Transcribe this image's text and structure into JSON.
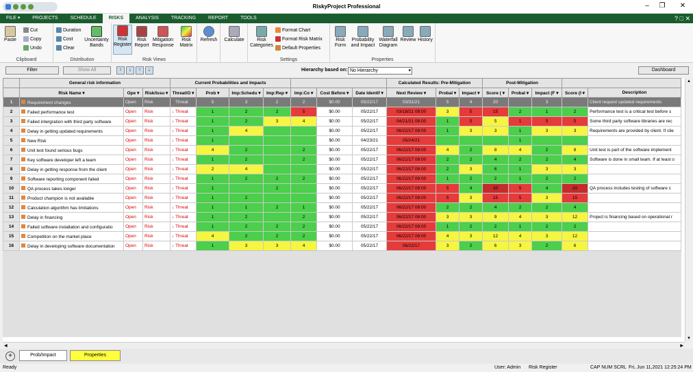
{
  "window": {
    "title": "RiskyProject Professional"
  },
  "menu": {
    "file": "FILE",
    "tabs": [
      "PROJECTS",
      "SCHEDULE",
      "RISKS",
      "ANALYSIS",
      "TRACKING",
      "REPORT",
      "TOOLS"
    ],
    "active": "RISKS"
  },
  "ribbon": {
    "clipboard": {
      "label": "Clipboard",
      "paste": "Paste",
      "cut": "Cut",
      "copy": "Copy",
      "undo": "Undo"
    },
    "distribution": {
      "label": "Distribution",
      "duration": "Duration",
      "cost": "Cost",
      "clear": "Clear",
      "uncertainty1": "Uncertainty",
      "uncertainty2": "Bands"
    },
    "riskviews": {
      "label": "Risk Views",
      "register1": "Risk",
      "register2": "Register",
      "report1": "Risk",
      "report2": "Report",
      "mitigation1": "Mitigation",
      "mitigation2": "Response",
      "matrix1": "Risk",
      "matrix2": "Matrix"
    },
    "refresh": "Refresh",
    "calculate": "Calculate",
    "settings": {
      "label": "Settings",
      "categories1": "Risk",
      "categories2": "Categories",
      "format_chart": "Format Chart",
      "format_matrix": "Format Risk Matrix",
      "default_props": "Default Properties"
    },
    "properties": {
      "label": "Properties",
      "form1": "Risk",
      "form2": "Form",
      "prob1": "Probability",
      "prob2": "and Impact",
      "waterfall1": "Waterfall",
      "waterfall2": "Diagram",
      "review": "Review",
      "history": "History"
    }
  },
  "toolbar": {
    "filter": "Filter",
    "show_all": "Show All",
    "hierarchy_label": "Hierarchy based on:",
    "hierarchy_value": "No Hierarchy",
    "dashboard": "Dashboard"
  },
  "groups": {
    "general": "General risk information",
    "probs": "Current Probabilities and Impacts",
    "pre": "Calculated Results: Pre-Mitigation",
    "post": "Post-Mitigation"
  },
  "columns": [
    "Risk Name",
    "Ope",
    "Risk/Issu",
    "Threat/O",
    "Prob",
    "Imp:Schedu",
    "Imp:Rep",
    "Imp:Co",
    "Cost Before",
    "Date Identif",
    "Next Review",
    "Probal",
    "Impact",
    "Score (",
    "Probal",
    "Impact (F",
    "Score (I",
    "Description"
  ],
  "rows": [
    {
      "n": "1",
      "name": "Requirement changes",
      "status": "Open",
      "type": "Risk",
      "threat": "Threat",
      "p": "5",
      "s": "3",
      "rep": "2",
      "co": "2",
      "cost": "$0.00",
      "date": "05/22/17",
      "review": "03/31/21",
      "pp": "5",
      "pi": "4",
      "ps": "20",
      "qp": "",
      "qi": "3",
      "qs": "",
      "desc": "Client request updated requirements"
    },
    {
      "n": "2",
      "name": "Failed performance test",
      "status": "Open",
      "type": "Risk",
      "threat": "Threat",
      "p": "1",
      "s": "2",
      "rep": "2",
      "co": "5",
      "cost": "$0.00",
      "date": "05/22/17",
      "review": "03/18/21 08:00",
      "pp": "3",
      "pi": "5",
      "ps": "15",
      "qp": "2",
      "qi": "1",
      "qs": "2",
      "desc": "Performance test is a critical test before s"
    },
    {
      "n": "3",
      "name": "Failed intergration with third party software",
      "status": "Open",
      "type": "Risk",
      "threat": "Threat",
      "p": "1",
      "s": "2",
      "rep": "3",
      "co": "4",
      "cost": "$0.00",
      "date": "05/22/17",
      "review": "04/21/21 08:00",
      "pp": "1",
      "pi": "5",
      "ps": "5",
      "qp": "1",
      "qi": "5",
      "qs": "5",
      "desc": "Some third party software libraries are rec"
    },
    {
      "n": "4",
      "name": "Delay in getting updated requirements",
      "status": "Open",
      "type": "Risk",
      "threat": "Threat",
      "p": "1",
      "s": "4",
      "rep": "",
      "co": "",
      "cost": "$0.00",
      "date": "05/22/17",
      "review": "06/22/17 08:00",
      "pp": "1",
      "pi": "3",
      "ps": "3",
      "qp": "1",
      "qi": "3",
      "qs": "3",
      "desc": "Requirements are provided by client. If clie"
    },
    {
      "n": "5",
      "name": "New Risk",
      "status": "Open",
      "type": "Risk",
      "threat": "Threat",
      "p": "1",
      "s": "",
      "rep": "",
      "co": "",
      "cost": "$0.00",
      "date": "04/23/21",
      "review": "05/24/21",
      "pp": "",
      "pi": "",
      "ps": "",
      "qp": "1",
      "qi": "",
      "qs": "",
      "desc": ""
    },
    {
      "n": "6",
      "name": "Unit test found serious bugs",
      "status": "Open",
      "type": "Risk",
      "threat": "Threat",
      "p": "4",
      "s": "2",
      "rep": "",
      "co": "2",
      "cost": "$0.00",
      "date": "05/22/17",
      "review": "06/22/17 08:00",
      "pp": "4",
      "pi": "2",
      "ps": "8",
      "qp": "4",
      "qi": "2",
      "qs": "8",
      "desc": "Unit test is part of the software implement"
    },
    {
      "n": "7",
      "name": "Key software developer left a team",
      "status": "Open",
      "type": "Risk",
      "threat": "Threat",
      "p": "1",
      "s": "2",
      "rep": "",
      "co": "2",
      "cost": "$0.00",
      "date": "05/22/17",
      "review": "06/22/17 08:00",
      "pp": "2",
      "pi": "2",
      "ps": "4",
      "qp": "2",
      "qi": "2",
      "qs": "4",
      "desc": "Software is done in small team. If at least o"
    },
    {
      "n": "8",
      "name": "Delay in getting response from the client",
      "status": "Open",
      "type": "Risk",
      "threat": "Threat",
      "p": "2",
      "s": "4",
      "rep": "",
      "co": "",
      "cost": "$0.00",
      "date": "05/22/17",
      "review": "06/22/17 08:00",
      "pp": "2",
      "pi": "3",
      "ps": "6",
      "qp": "1",
      "qi": "3",
      "qs": "3",
      "desc": ""
    },
    {
      "n": "9",
      "name": "Software reporting component failed",
      "status": "Open",
      "type": "Risk",
      "threat": "Threat",
      "p": "1",
      "s": "2",
      "rep": "2",
      "co": "2",
      "cost": "$0.00",
      "date": "05/22/17",
      "review": "06/22/17 08:00",
      "pp": "1",
      "pi": "2",
      "ps": "2",
      "qp": "1",
      "qi": "2",
      "qs": "2",
      "desc": ""
    },
    {
      "n": "10",
      "name": "QA process takes longer",
      "status": "Open",
      "type": "Risk",
      "threat": "Threat",
      "p": "1",
      "s": "",
      "rep": "2",
      "co": "",
      "cost": "$0.00",
      "date": "05/22/17",
      "review": "06/22/17 08:00",
      "pp": "5",
      "pi": "4",
      "ps": "20",
      "qp": "5",
      "qi": "4",
      "qs": "20",
      "desc": "QA process includes testing of software c"
    },
    {
      "n": "11",
      "name": "Product champion is not available",
      "status": "Open",
      "type": "Risk",
      "threat": "Threat",
      "p": "1",
      "s": "2",
      "rep": "",
      "co": "",
      "cost": "$0.00",
      "date": "05/22/17",
      "review": "06/22/17 08:00",
      "pp": "5",
      "pi": "3",
      "ps": "15",
      "qp": "5",
      "qi": "3",
      "qs": "15",
      "desc": ""
    },
    {
      "n": "12",
      "name": "Calculation algorithm has limitations",
      "status": "Open",
      "type": "Risk",
      "threat": "Threat",
      "p": "1",
      "s": "1",
      "rep": "2",
      "co": "1",
      "cost": "$0.00",
      "date": "05/22/17",
      "review": "06/22/17 08:00",
      "pp": "2",
      "pi": "2",
      "ps": "4",
      "qp": "2",
      "qi": "2",
      "qs": "4",
      "desc": ""
    },
    {
      "n": "13",
      "name": "Delay in financing",
      "status": "Open",
      "type": "Risk",
      "threat": "Threat",
      "p": "1",
      "s": "2",
      "rep": "",
      "co": "2",
      "cost": "$0.00",
      "date": "05/22/17",
      "review": "06/22/17 08:00",
      "pp": "3",
      "pi": "3",
      "ps": "9",
      "qp": "4",
      "qi": "3",
      "qs": "12",
      "desc": "Project is financing based on operational r"
    },
    {
      "n": "14",
      "name": "Failed software installation and configuratio",
      "status": "Open",
      "type": "Risk",
      "threat": "Threat",
      "p": "1",
      "s": "2",
      "rep": "2",
      "co": "2",
      "cost": "$0.00",
      "date": "05/22/17",
      "review": "06/22/17 08:00",
      "pp": "1",
      "pi": "2",
      "ps": "2",
      "qp": "1",
      "qi": "2",
      "qs": "2",
      "desc": ""
    },
    {
      "n": "15",
      "name": "Competition on the market place",
      "status": "Open",
      "type": "Risk",
      "threat": "Threat",
      "p": "4",
      "s": "2",
      "rep": "2",
      "co": "2",
      "cost": "$0.00",
      "date": "05/22/17",
      "review": "06/22/17 08:00",
      "pp": "4",
      "pi": "3",
      "ps": "12",
      "qp": "4",
      "qi": "3",
      "qs": "12",
      "desc": ""
    },
    {
      "n": "16",
      "name": "Delay in developing software documentation",
      "status": "Open",
      "type": "Risk",
      "threat": "Threat",
      "p": "1",
      "s": "3",
      "rep": "3",
      "co": "4",
      "cost": "$0.00",
      "date": "05/22/17",
      "review": "06/22/17",
      "pp": "3",
      "pi": "2",
      "ps": "6",
      "qp": "3",
      "qi": "2",
      "qs": "6",
      "desc": ""
    }
  ],
  "colors": {
    "p": [
      "g",
      "g",
      "g",
      "g",
      "g",
      "y",
      "g",
      "y",
      "g",
      "g",
      "g",
      "g",
      "g",
      "g",
      "y",
      "g"
    ],
    "s": [
      "",
      "g",
      "g",
      "y",
      "g",
      "g",
      "g",
      "y",
      "g",
      "g",
      "g",
      "g",
      "g",
      "g",
      "g",
      "y"
    ],
    "rep": [
      "",
      "g",
      "y",
      "g",
      "g",
      "g",
      "g",
      "g",
      "g",
      "g",
      "g",
      "g",
      "g",
      "g",
      "g",
      "y"
    ],
    "co": [
      "",
      "r",
      "y",
      "g",
      "g",
      "g",
      "g",
      "g",
      "g",
      "g",
      "g",
      "g",
      "g",
      "g",
      "g",
      "y"
    ],
    "pp": [
      "",
      "y",
      "g",
      "g",
      "g",
      "y",
      "g",
      "g",
      "g",
      "r",
      "r",
      "g",
      "y",
      "g",
      "y",
      "y"
    ],
    "pi": [
      "",
      "r",
      "r",
      "y",
      "g",
      "g",
      "g",
      "y",
      "g",
      "g",
      "y",
      "g",
      "y",
      "g",
      "y",
      "g"
    ],
    "ps": [
      "",
      "r",
      "y",
      "y",
      "g",
      "y",
      "g",
      "g",
      "g",
      "dr",
      "r",
      "g",
      "y",
      "g",
      "y",
      "y"
    ],
    "qp": [
      "",
      "g",
      "r",
      "g",
      "g",
      "y",
      "g",
      "g",
      "g",
      "r",
      "r",
      "g",
      "y",
      "g",
      "y",
      "y"
    ],
    "qi": [
      "",
      "g",
      "r",
      "y",
      "g",
      "g",
      "g",
      "y",
      "g",
      "g",
      "y",
      "g",
      "y",
      "g",
      "y",
      "g"
    ],
    "qs": [
      "",
      "g",
      "r",
      "y",
      "g",
      "y",
      "g",
      "y",
      "g",
      "dr",
      "r",
      "g",
      "y",
      "g",
      "y",
      "y"
    ]
  },
  "sheets": {
    "tab1": "Prob/Impact",
    "tab2": "Properties"
  },
  "status": {
    "ready": "Ready",
    "user": "User: Admin",
    "view": "Risk Register",
    "flags": "CAP  NUM  SCRL",
    "datetime": "Fri, Jun 11,2021  12:25:24 PM"
  }
}
